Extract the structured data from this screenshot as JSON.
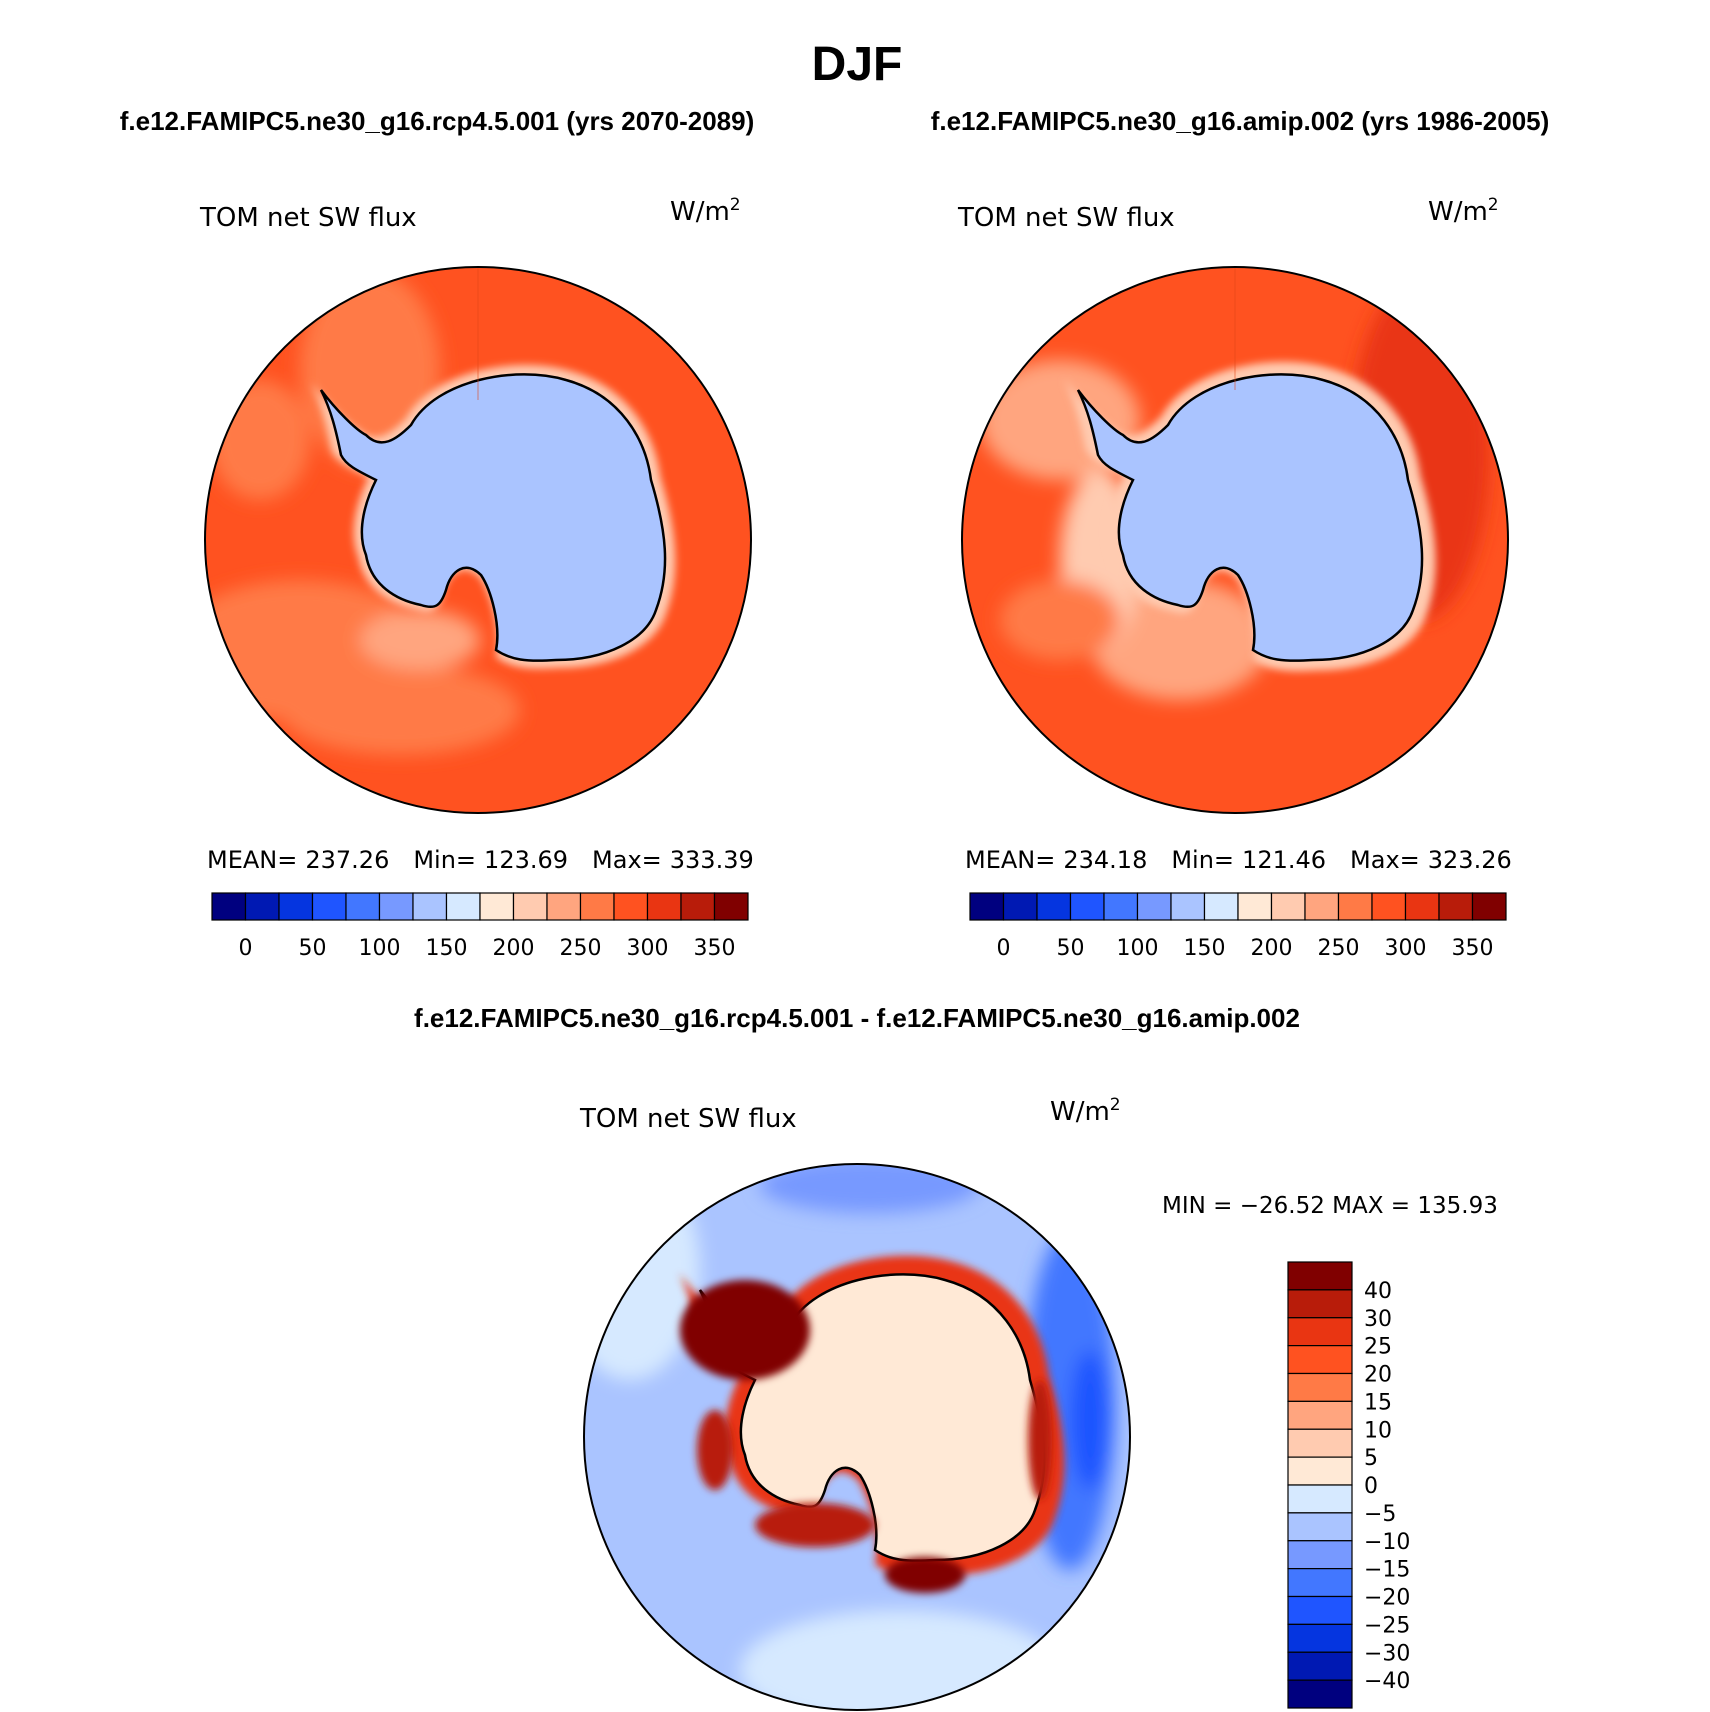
{
  "figure": {
    "title": "DJF",
    "subtitle_left": "f.e12.FAMIPC5.ne30_g16.rcp4.5.001 (yrs 2070-2089)",
    "subtitle_right": "f.e12.FAMIPC5.ne30_g16.amip.002 (yrs 1986-2005)",
    "diff_title": "f.e12.FAMIPC5.ne30_g16.rcp4.5.001 - f.e12.FAMIPC5.ne30_g16.amip.002"
  },
  "chart_data": [
    {
      "type": "heatmap",
      "projection": "south polar stereographic",
      "variable": "TOM net SW flux",
      "units": "W/m",
      "units_exp": "2",
      "stats": {
        "mean_label": "MEAN=",
        "mean": "237.26",
        "min_label": "Min=",
        "min": "123.69",
        "max_label": "Max=",
        "max": "333.39"
      },
      "colorbar_ticks": [
        "0",
        "50",
        "100",
        "150",
        "200",
        "250",
        "300",
        "350"
      ],
      "colorbar_colors": [
        "#00007f",
        "#0019b3",
        "#0535e0",
        "#1f55ff",
        "#4277ff",
        "#7799ff",
        "#aac4ff",
        "#d6e9ff",
        "#ffe9d6",
        "#ffcbb0",
        "#ffa57f",
        "#ff7a46",
        "#ff5220",
        "#e93512",
        "#b81c0a",
        "#800000"
      ]
    },
    {
      "type": "heatmap",
      "projection": "south polar stereographic",
      "variable": "TOM net SW flux",
      "units": "W/m",
      "units_exp": "2",
      "stats": {
        "mean_label": "MEAN=",
        "mean": "234.18",
        "min_label": "Min=",
        "min": "121.46",
        "max_label": "Max=",
        "max": "323.26"
      },
      "colorbar_ticks": [
        "0",
        "50",
        "100",
        "150",
        "200",
        "250",
        "300",
        "350"
      ],
      "colorbar_colors": [
        "#00007f",
        "#0019b3",
        "#0535e0",
        "#1f55ff",
        "#4277ff",
        "#7799ff",
        "#aac4ff",
        "#d6e9ff",
        "#ffe9d6",
        "#ffcbb0",
        "#ffa57f",
        "#ff7a46",
        "#ff5220",
        "#e93512",
        "#b81c0a",
        "#800000"
      ]
    },
    {
      "type": "heatmap",
      "projection": "south polar stereographic",
      "variable": "TOM net SW flux",
      "units": "W/m",
      "units_exp": "2",
      "stats_text": "MIN = −26.52 MAX = 135.93",
      "colorbar_ticks": [
        "40",
        "30",
        "25",
        "20",
        "15",
        "10",
        "5",
        "0",
        "−5",
        "−10",
        "−15",
        "−20",
        "−25",
        "−30",
        "−40"
      ],
      "colorbar_colors": [
        "#800000",
        "#b81c0a",
        "#e93512",
        "#ff5220",
        "#ff7a46",
        "#ffa57f",
        "#ffcbb0",
        "#ffe9d6",
        "#d6e9ff",
        "#aac4ff",
        "#7799ff",
        "#4277ff",
        "#1f55ff",
        "#0535e0",
        "#0019b3",
        "#00007f"
      ]
    }
  ]
}
